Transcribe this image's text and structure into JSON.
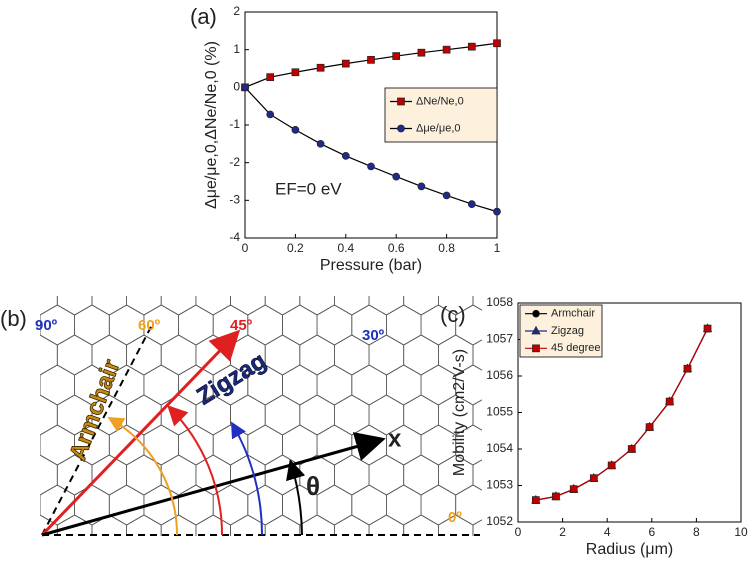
{
  "chart_data": [
    {
      "type": "line",
      "panel_label": "(a)",
      "x_label": "Pressure (bar)",
      "y_label": "Δμe/μe,0,ΔNe/Ne,0 (%)",
      "annotation": "EF=0 eV",
      "x": [
        0,
        0.1,
        0.2,
        0.3,
        0.4,
        0.5,
        0.6,
        0.7,
        0.8,
        0.9,
        1
      ],
      "series": [
        {
          "name": "ΔNe/Ne,0",
          "color": "#c00000",
          "line_color": "#000000",
          "marker": "square",
          "values": [
            0,
            0.27,
            0.4,
            0.52,
            0.63,
            0.73,
            0.83,
            0.92,
            1.0,
            1.08,
            1.17
          ]
        },
        {
          "name": "Δμe/μe,0",
          "color": "#1f2a8f",
          "line_color": "#000000",
          "marker": "circle",
          "values": [
            0,
            -0.72,
            -1.13,
            -1.5,
            -1.82,
            -2.1,
            -2.37,
            -2.63,
            -2.87,
            -3.1,
            -3.3
          ]
        }
      ],
      "xlim": [
        0,
        1
      ],
      "xticks": [
        0,
        0.2,
        0.4,
        0.6,
        0.8,
        1
      ],
      "ylim": [
        -4,
        2
      ],
      "yticks": [
        -4,
        -3,
        -2,
        -1,
        0,
        1,
        2
      ],
      "legend": "center right"
    },
    {
      "type": "line",
      "panel_label": "(c)",
      "x_label": "Radius (μm)",
      "y_label": "Mobility (cm2/V-s)",
      "x": [
        0.8,
        1.7,
        2.5,
        3.4,
        4.2,
        5.1,
        5.9,
        6.8,
        7.6,
        8.5
      ],
      "series": [
        {
          "name": "Armchair",
          "color": "#000000",
          "line_color": "#000000",
          "marker": "circle",
          "values": [
            1052.6,
            1052.7,
            1052.9,
            1053.2,
            1053.55,
            1054.0,
            1054.6,
            1055.3,
            1056.2,
            1057.3
          ]
        },
        {
          "name": "Zigzag",
          "color": "#1f2a8f",
          "line_color": "#1f2a8f",
          "marker": "triangle",
          "values": [
            1052.6,
            1052.7,
            1052.9,
            1053.2,
            1053.55,
            1054.0,
            1054.6,
            1055.3,
            1056.2,
            1057.3
          ]
        },
        {
          "name": "45 degree",
          "color": "#c00000",
          "line_color": "#c00000",
          "marker": "square",
          "values": [
            1052.6,
            1052.7,
            1052.9,
            1053.2,
            1053.55,
            1054.0,
            1054.6,
            1055.3,
            1056.2,
            1057.3
          ]
        }
      ],
      "xlim": [
        0,
        10
      ],
      "xticks": [
        0,
        2,
        4,
        6,
        8,
        10
      ],
      "ylim": [
        1052,
        1058
      ],
      "yticks": [
        1052,
        1053,
        1054,
        1055,
        1056,
        1057,
        1058
      ],
      "legend": "upper left"
    }
  ],
  "diagram": {
    "panel_label": "(b)",
    "angles": [
      "90º",
      "60º",
      "45º",
      "30º",
      "0º"
    ],
    "directions": [
      "Armchair",
      "Zigzag"
    ],
    "axis_label": "x",
    "angle_symbol": "θ"
  }
}
